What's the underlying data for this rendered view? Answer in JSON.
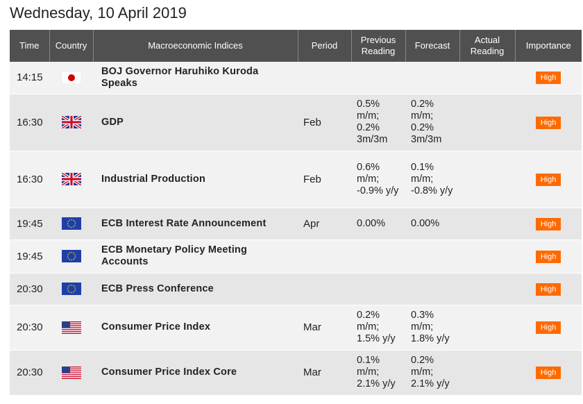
{
  "page_title": "Wednesday, 10 April 2019",
  "columns": [
    "Time",
    "Country",
    "Macroeconomic Indices",
    "Period",
    "Previous Reading",
    "Forecast",
    "Actual Reading",
    "Importance"
  ],
  "rows": [
    {
      "time": "14:15",
      "country": "jp-flag-icon",
      "event": "BOJ Governor Haruhiko Kuroda Speaks",
      "period": "",
      "previous": "",
      "forecast": "",
      "actual": "",
      "importance": "High"
    },
    {
      "time": "16:30",
      "country": "gb-flag-icon",
      "event": "GDP",
      "period": "Feb",
      "previous": "0.5% m/m; 0.2% 3m/3m",
      "forecast": "0.2% m/m; 0.2% 3m/3m",
      "actual": "",
      "importance": "High"
    },
    {
      "time": "16:30",
      "country": "gb-flag-icon",
      "event": "Industrial Production",
      "period": "Feb",
      "previous": "0.6% m/m; -0.9% y/y",
      "forecast": "0.1% m/m; -0.8% y/y",
      "actual": "",
      "importance": "High"
    },
    {
      "time": "19:45",
      "country": "eu-flag-icon",
      "event": "ECB Interest Rate Announcement",
      "period": "Apr",
      "previous": "0.00%",
      "forecast": "0.00%",
      "actual": "",
      "importance": "High"
    },
    {
      "time": "19:45",
      "country": "eu-flag-icon",
      "event": "ECB Monetary Policy Meeting Accounts",
      "period": "",
      "previous": "",
      "forecast": "",
      "actual": "",
      "importance": "High"
    },
    {
      "time": "20:30",
      "country": "eu-flag-icon",
      "event": "ECB Press Conference",
      "period": "",
      "previous": "",
      "forecast": "",
      "actual": "",
      "importance": "High"
    },
    {
      "time": "20:30",
      "country": "us-flag-icon",
      "event": "Consumer Price Index",
      "period": "Mar",
      "previous": "0.2% m/m; 1.5% y/y",
      "forecast": "0.3% m/m; 1.8% y/y",
      "actual": "",
      "importance": "High"
    },
    {
      "time": "20:30",
      "country": "us-flag-icon",
      "event": "Consumer Price Index Core",
      "period": "Mar",
      "previous": "0.1% m/m; 2.1% y/y",
      "forecast": "0.2% m/m; 2.1% y/y",
      "actual": "",
      "importance": "High"
    }
  ],
  "colors": {
    "header_bg": "#505050",
    "badge": "#ff6a00",
    "row_light": "#f2f2f2",
    "row_dark": "#e6e6e6"
  }
}
